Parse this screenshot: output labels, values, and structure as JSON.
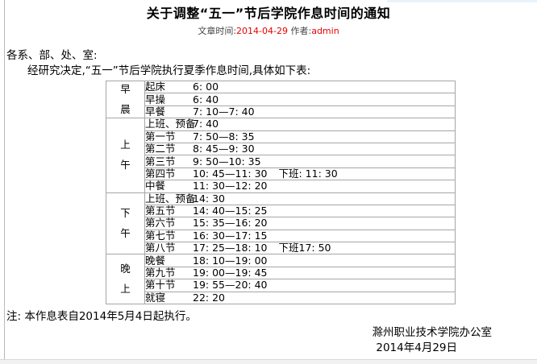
{
  "page": {
    "title": "关于调整“五一”节后学院作息时间的通知",
    "salutation": "各系、部、处、室:",
    "intro": "经研究决定,“五一”节后学院执行夏季作息时间,具体如下表:",
    "note": "注: 本作息表自2014年5月4日起执行。",
    "signature": "滁州职业技术学院办公室",
    "date": "2014年4月29日"
  },
  "meta": {
    "time_label": "文章时间:",
    "time_value": "2014-04-29",
    "author_label": "作者:",
    "author_value": "admin"
  },
  "colors": {
    "accent_red": "#e60000",
    "table_border": "#a6a6a6"
  },
  "schedule": {
    "groups": [
      {
        "label": "早晨",
        "label_chars": [
          "早",
          "晨"
        ],
        "rows": [
          {
            "name": "起床",
            "time": "6: 00"
          },
          {
            "name": "早操",
            "time": "6: 40"
          },
          {
            "name": "早餐",
            "time": "7: 10—7: 40"
          }
        ]
      },
      {
        "label": "上午",
        "label_chars": [
          "上",
          "午"
        ],
        "rows": [
          {
            "name": "上班、预备",
            "time": "7: 40"
          },
          {
            "name": "第一节",
            "time": "7: 50—8: 35"
          },
          {
            "name": "第二节",
            "time": "8: 45—9: 30"
          },
          {
            "name": "第三节",
            "time": "9: 50—10: 35"
          },
          {
            "name": "第四节",
            "time": "10: 45—11: 30",
            "note": "下班: 11: 30"
          },
          {
            "name": "中餐",
            "time": "11: 30—12: 20"
          }
        ]
      },
      {
        "label": "下午",
        "label_chars": [
          "下",
          "午"
        ],
        "rows": [
          {
            "name": "上班、预备",
            "time": "14: 30"
          },
          {
            "name": "第五节",
            "time": "14: 40—15: 25"
          },
          {
            "name": "第六节",
            "time": "15: 35—16: 20"
          },
          {
            "name": "第七节",
            "time": "16: 30—17: 15"
          },
          {
            "name": "第八节",
            "time": "17: 25—18: 10",
            "note": "下班17: 50"
          }
        ]
      },
      {
        "label": "晚上",
        "label_chars": [
          "晚",
          "上"
        ],
        "rows": [
          {
            "name": "晚餐",
            "time": "18: 10—19: 00"
          },
          {
            "name": "第九节",
            "time": "19: 00—19: 45"
          },
          {
            "name": "第十节",
            "time": "19: 55—20: 40"
          },
          {
            "name": "就寝",
            "time": "22: 20"
          }
        ]
      }
    ]
  }
}
